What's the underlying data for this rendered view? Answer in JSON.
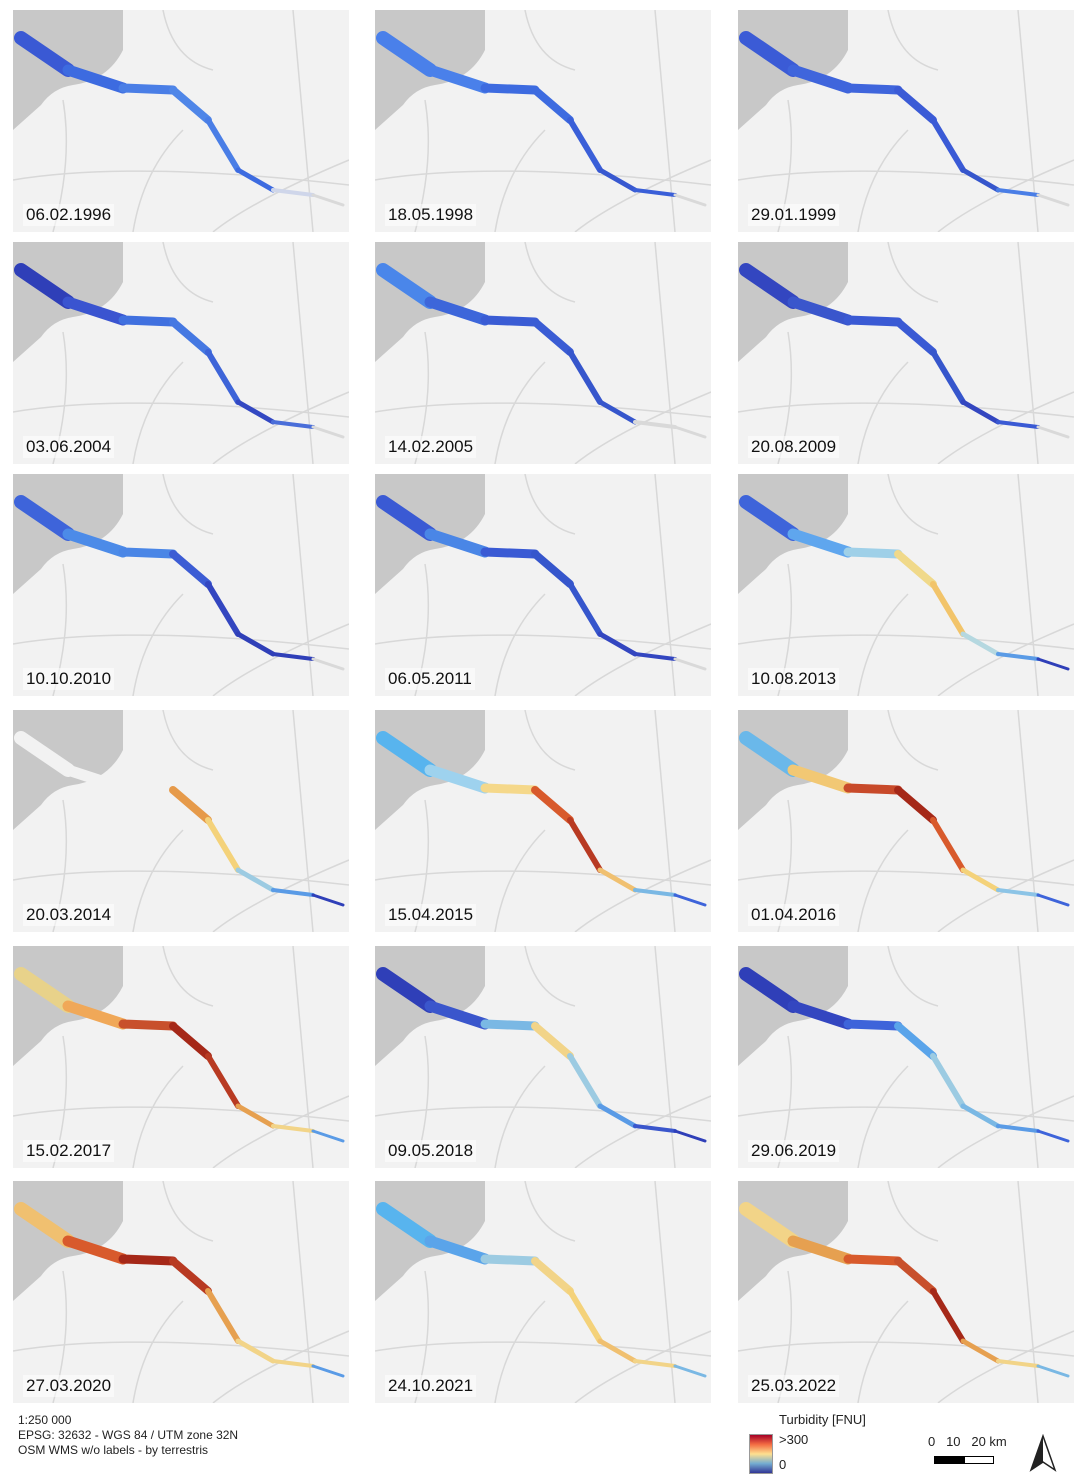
{
  "panels": [
    {
      "date": "06.02.1996",
      "colors": [
        "#3a59d4",
        "#3d6be0",
        "#4a7ee6",
        "#4f86e8",
        "#4a7ee6",
        "#3d6be0",
        "#cfd6ea",
        "#d9d9d9"
      ]
    },
    {
      "date": "18.05.1998",
      "colors": [
        "#4a80ea",
        "#4a80ea",
        "#3d6be0",
        "#3d6be0",
        "#3a5fd8",
        "#3858d0",
        "#3a5fd8",
        "#d9d9d9"
      ]
    },
    {
      "date": "29.01.1999",
      "colors": [
        "#3b5bd6",
        "#3f65dc",
        "#3f65dc",
        "#3b5bd6",
        "#3a5ad6",
        "#3656cc",
        "#4a7ee6",
        "#d9d9d9"
      ]
    },
    {
      "date": "03.06.2004",
      "colors": [
        "#2f3fb8",
        "#3a54d0",
        "#4070df",
        "#4578e2",
        "#3d64d8",
        "#3348c2",
        "#4a6ed9",
        "#d9d9d9"
      ]
    },
    {
      "date": "14.02.2005",
      "colors": [
        "#4a86ea",
        "#3d66da",
        "#3a5cd4",
        "#3a5cd4",
        "#3656cc",
        "#3656cc",
        "#d9d9d9",
        "#d9d9d9"
      ]
    },
    {
      "date": "20.08.2009",
      "colors": [
        "#3346c0",
        "#3a56cc",
        "#3a5ad4",
        "#3a5ad4",
        "#3656cc",
        "#3346c0",
        "#3a5ad4",
        "#d9d9d9"
      ]
    },
    {
      "date": "10.10.2010",
      "colors": [
        "#3e64da",
        "#4c8be8",
        "#4a86e6",
        "#3c5cd4",
        "#3346c0",
        "#2f3fb8",
        "#2f3fb8",
        "#d9d9d9"
      ]
    },
    {
      "date": "06.05.2011",
      "colors": [
        "#3a5ad4",
        "#4a86e6",
        "#3a5ad4",
        "#3656cc",
        "#3656cc",
        "#3346c0",
        "#3346c0",
        "#d9d9d9"
      ]
    },
    {
      "date": "10.08.2013",
      "colors": [
        "#3e64da",
        "#5fa6ee",
        "#9fd0e8",
        "#f0d98a",
        "#f2c46a",
        "#b5d8e0",
        "#5a9be6",
        "#2f3fb8"
      ]
    },
    {
      "date": "20.03.2014",
      "colors": [
        "#f2f2f2",
        "#f2f2f2",
        "#f2f2f2",
        "#e69a4a",
        "#f4d27a",
        "#9ccbe2",
        "#5a9be6",
        "#2f3fb8"
      ]
    },
    {
      "date": "15.04.2015",
      "colors": [
        "#58b4ee",
        "#9ed2ee",
        "#f5d88a",
        "#d85a2c",
        "#b83a22",
        "#f0c070",
        "#7ab8e4",
        "#3e64da"
      ]
    },
    {
      "date": "01.04.2016",
      "colors": [
        "#6ab8ea",
        "#f2c874",
        "#c84a2a",
        "#a52818",
        "#d85a2c",
        "#f4d27a",
        "#8cc4e6",
        "#3e64da"
      ]
    },
    {
      "date": "15.02.2017",
      "colors": [
        "#e8d28a",
        "#f0a858",
        "#c8502c",
        "#a52818",
        "#b83a22",
        "#e6a050",
        "#f2d488",
        "#5a9be6"
      ]
    },
    {
      "date": "09.05.2018",
      "colors": [
        "#2f3fb8",
        "#3a56cc",
        "#7ab8e4",
        "#f2d488",
        "#9ccbe2",
        "#5a9be6",
        "#3a56cc",
        "#2f3fb8"
      ]
    },
    {
      "date": "29.06.2019",
      "colors": [
        "#2f3fb8",
        "#3346c0",
        "#3e64da",
        "#5aa4ea",
        "#9ccbe2",
        "#7ab8e4",
        "#5a9be6",
        "#3e64da"
      ]
    },
    {
      "date": "27.03.2020",
      "colors": [
        "#f0c070",
        "#d85a2c",
        "#a52818",
        "#b83a22",
        "#e6a050",
        "#f2d488",
        "#f2d488",
        "#5a9be6"
      ]
    },
    {
      "date": "24.10.2021",
      "colors": [
        "#58b4ee",
        "#5aa4ea",
        "#9ccbe2",
        "#f2d488",
        "#f4d27a",
        "#f0c070",
        "#f2d488",
        "#7ab8e4"
      ]
    },
    {
      "date": "25.03.2022",
      "colors": [
        "#f2d488",
        "#e6a050",
        "#d85a2c",
        "#c8502c",
        "#a52818",
        "#e6a050",
        "#f2d488",
        "#7ab8e4"
      ]
    }
  ],
  "footer": {
    "scale": "1:250 000",
    "crs": "EPSG: 32632 - WGS 84 / UTM zone 32N",
    "basemap": "OSM WMS w/o labels - by terrestris"
  },
  "legend": {
    "title": "Turbidity [FNU]",
    "max_label": ">300",
    "min_label": "0"
  },
  "scalebar": {
    "labels": "0   10   20 km"
  }
}
